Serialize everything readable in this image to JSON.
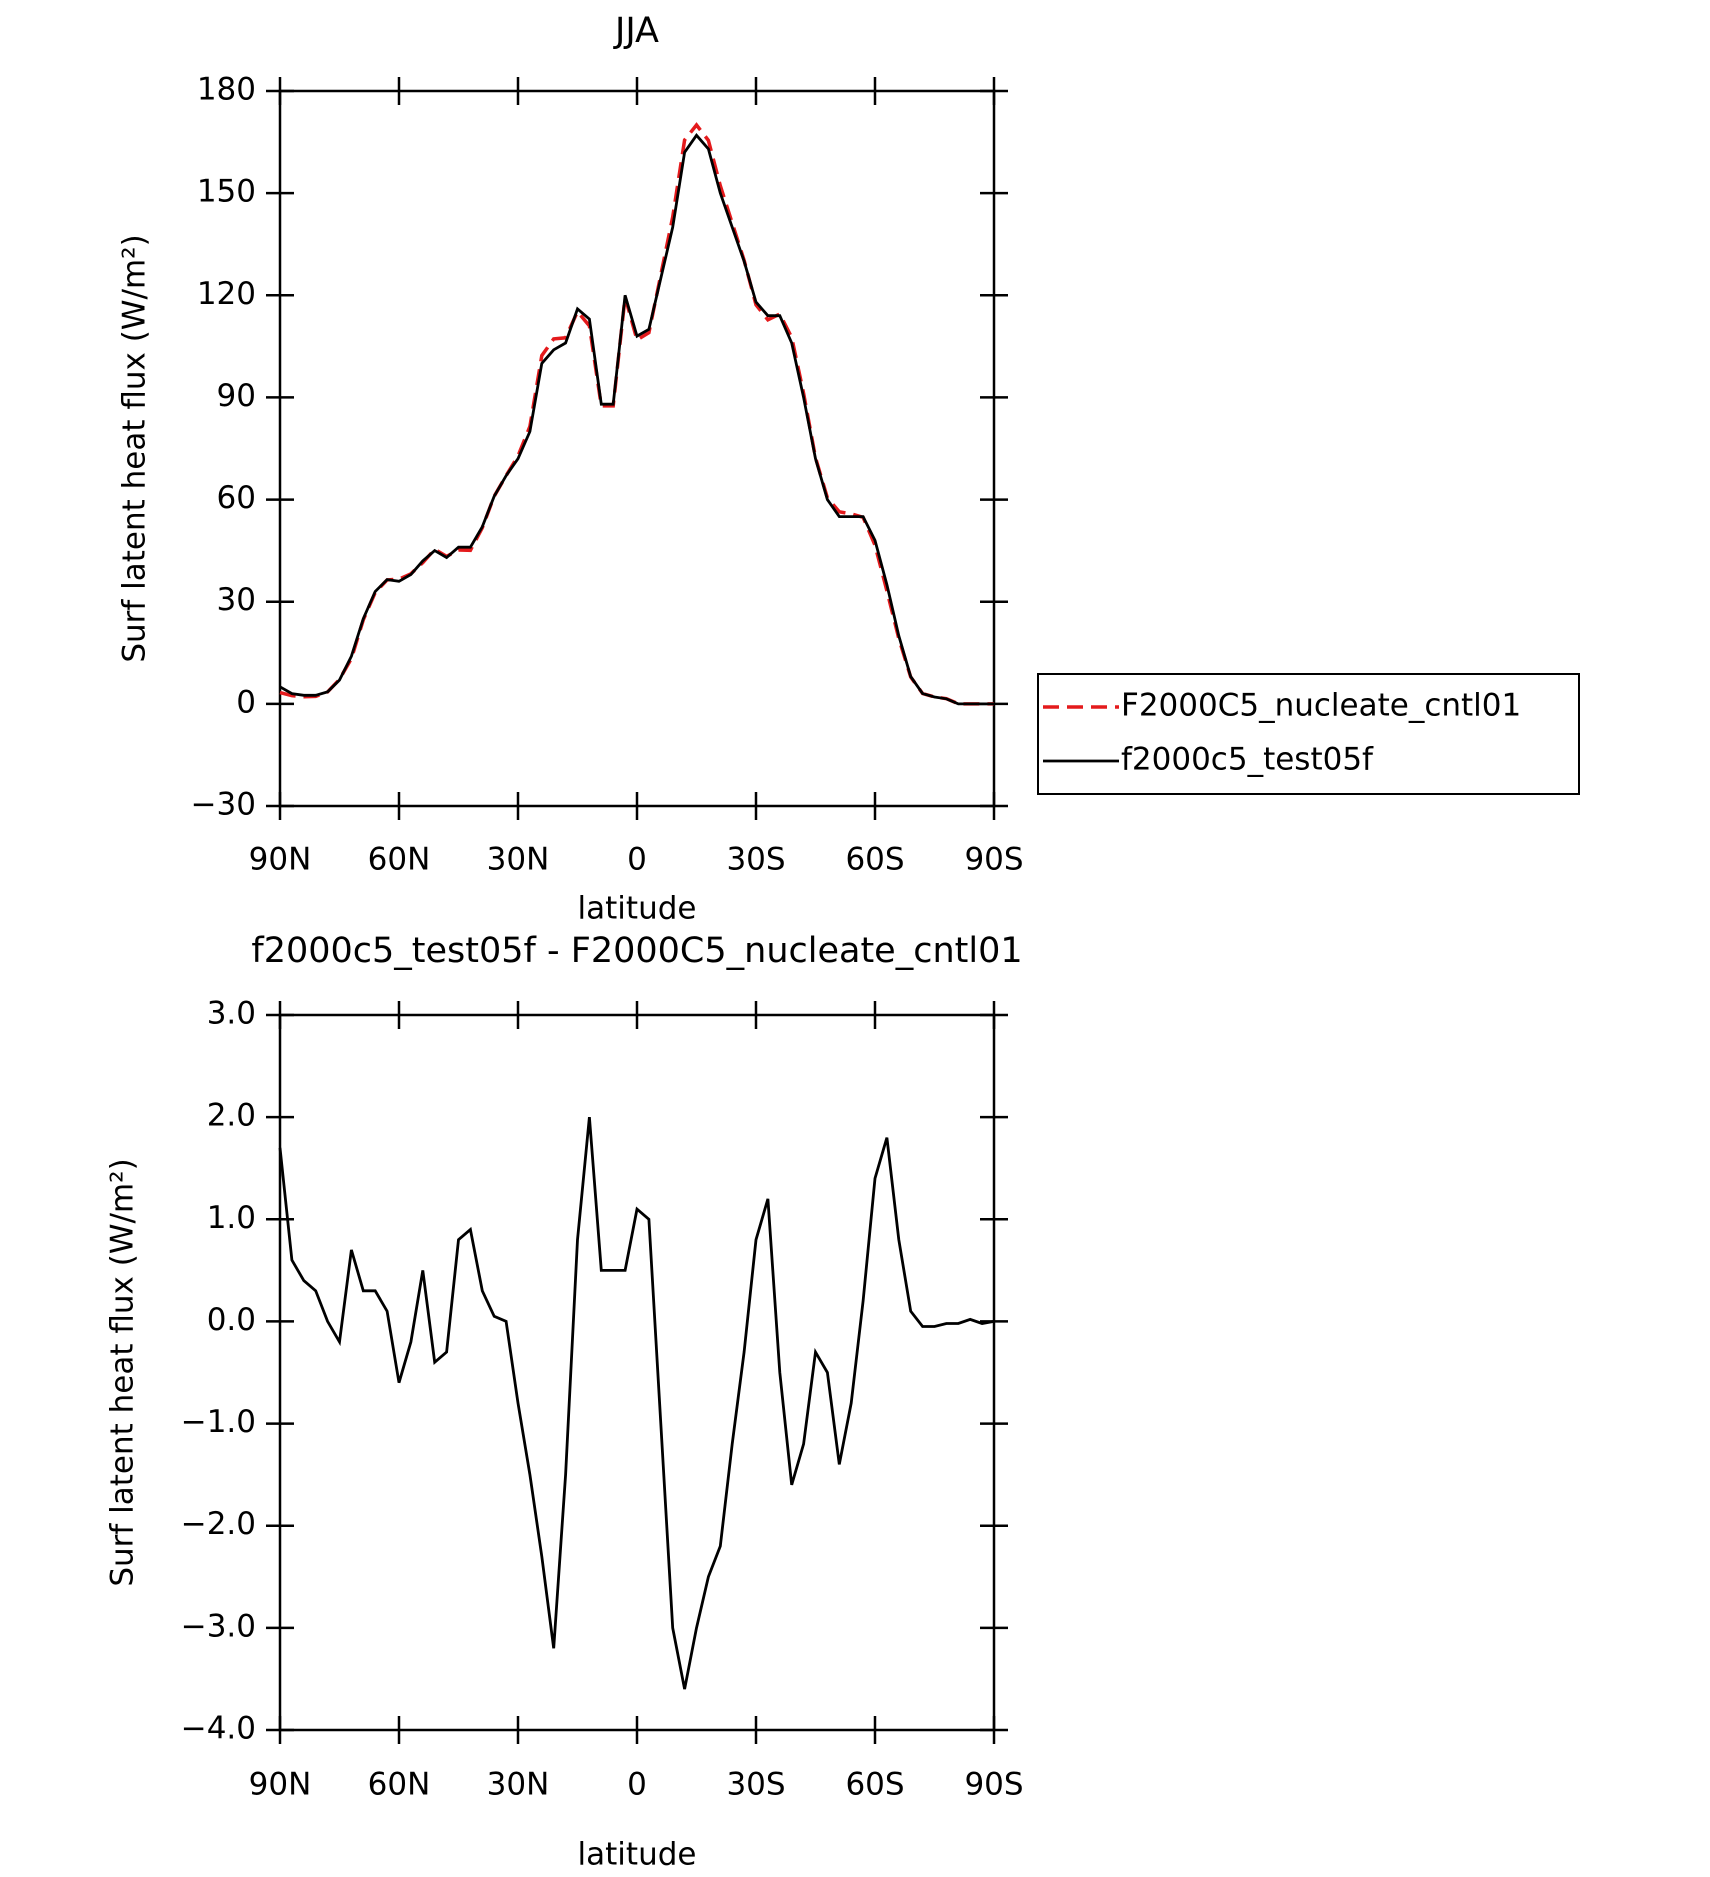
{
  "chart_data": [
    {
      "type": "line",
      "title": "JJA",
      "xlabel": "latitude",
      "ylabel": "Surf latent heat flux (W/m²)",
      "x": [
        90,
        87,
        84,
        81,
        78,
        75,
        72,
        69,
        66,
        63,
        60,
        57,
        54,
        51,
        48,
        45,
        42,
        39,
        36,
        33,
        30,
        27,
        24,
        21,
        18,
        15,
        12,
        9,
        6,
        3,
        0,
        -3,
        -6,
        -9,
        -12,
        -15,
        -18,
        -21,
        -24,
        -27,
        -30,
        -33,
        -36,
        -39,
        -42,
        -45,
        -48,
        -51,
        -54,
        -57,
        -60,
        -63,
        -66,
        -69,
        -72,
        -75,
        -78,
        -81,
        -84,
        -87,
        -90
      ],
      "series": [
        {
          "name": "F2000C5_nucleate_cntl01",
          "color": "#e41a1c",
          "dash": "dashed",
          "values": [
            3.3,
            2.4,
            2.1,
            2.2,
            3.5,
            7.2,
            13.3,
            24.7,
            32.7,
            36.4,
            36.6,
            38.2,
            41.5,
            45.4,
            43.3,
            45.2,
            45.1,
            51.7,
            61,
            67,
            72.8,
            81.5,
            102.3,
            107.2,
            107.5,
            115.2,
            111,
            87.5,
            87.5,
            119.5,
            106.9,
            109,
            126,
            143,
            165.6,
            170,
            165.5,
            152.2,
            141.2,
            130.3,
            117.2,
            112.8,
            114.5,
            107.6,
            91.2,
            72.3,
            60.5,
            56.4,
            55.8,
            54.8,
            46.6,
            33.2,
            19.2,
            7.9,
            3.05,
            2.05,
            1.52,
            0.02,
            -0.02,
            0.02,
            0
          ]
        },
        {
          "name": "f2000c5_test05f",
          "color": "#000000",
          "dash": "solid",
          "values": [
            5,
            3,
            2.5,
            2.5,
            3.5,
            7,
            14,
            25,
            33,
            36.5,
            36,
            38,
            42,
            45,
            43,
            46,
            46,
            52,
            61,
            67,
            72,
            80,
            100,
            104,
            106,
            116,
            113,
            88,
            88,
            120,
            108,
            110,
            125,
            140,
            162,
            167,
            163,
            150,
            140,
            130,
            118,
            114,
            114,
            106,
            90,
            72,
            60,
            55,
            55,
            55,
            48,
            35,
            20,
            8,
            3,
            2,
            1.5,
            0,
            0,
            0,
            0
          ]
        }
      ],
      "xlim": [
        90,
        -90
      ],
      "xticks": [
        {
          "value": 90,
          "label": "90N"
        },
        {
          "value": 60,
          "label": "60N"
        },
        {
          "value": 30,
          "label": "30N"
        },
        0,
        {
          "value": -30,
          "label": "30S"
        },
        {
          "value": -60,
          "label": "60S"
        },
        {
          "value": -90,
          "label": "90S"
        }
      ],
      "ylim": [
        -30,
        180
      ],
      "yticks": [
        {
          "value": -30,
          "label": "−30"
        },
        0,
        30,
        60,
        90,
        120,
        150,
        180
      ],
      "legend_position": "right"
    },
    {
      "type": "line",
      "title": "f2000c5_test05f - F2000C5_nucleate_cntl01",
      "xlabel": "latitude",
      "ylabel": "Surf latent heat flux (W/m²)",
      "x": [
        90,
        87,
        84,
        81,
        78,
        75,
        72,
        69,
        66,
        63,
        60,
        57,
        54,
        51,
        48,
        45,
        42,
        39,
        36,
        33,
        30,
        27,
        24,
        21,
        18,
        15,
        12,
        9,
        6,
        3,
        0,
        -3,
        -6,
        -9,
        -12,
        -15,
        -18,
        -21,
        -24,
        -27,
        -30,
        -33,
        -36,
        -39,
        -42,
        -45,
        -48,
        -51,
        -54,
        -57,
        -60,
        -63,
        -66,
        -69,
        -72,
        -75,
        -78,
        -81,
        -84,
        -87,
        -90
      ],
      "series": [
        {
          "color": "#000000",
          "dash": "solid",
          "values": [
            1.7,
            0.6,
            0.4,
            0.3,
            0,
            -0.2,
            0.7,
            0.3,
            0.3,
            0.1,
            -0.6,
            -0.2,
            0.5,
            -0.4,
            -0.3,
            0.8,
            0.9,
            0.3,
            0.05,
            0,
            -0.8,
            -1.5,
            -2.3,
            -3.2,
            -1.5,
            0.8,
            2,
            0.5,
            0.5,
            0.5,
            1.1,
            1,
            -1,
            -3,
            -3.6,
            -3,
            -2.5,
            -2.2,
            -1.2,
            -0.3,
            0.8,
            1.2,
            -0.5,
            -1.6,
            -1.2,
            -0.3,
            -0.5,
            -1.4,
            -0.8,
            0.2,
            1.4,
            1.8,
            0.8,
            0.1,
            -0.05,
            -0.05,
            -0.02,
            -0.02,
            0.02,
            -0.02,
            0
          ]
        }
      ],
      "xlim": [
        90,
        -90
      ],
      "xticks": [
        {
          "value": 90,
          "label": "90N"
        },
        {
          "value": 60,
          "label": "60N"
        },
        {
          "value": 30,
          "label": "30N"
        },
        0,
        {
          "value": -30,
          "label": "30S"
        },
        {
          "value": -60,
          "label": "60S"
        },
        {
          "value": -90,
          "label": "90S"
        }
      ],
      "ylim": [
        -4,
        3
      ],
      "yticks": [
        {
          "value": -4,
          "label": "−4.0"
        },
        {
          "value": -3,
          "label": "−3.0"
        },
        {
          "value": -2,
          "label": "−2.0"
        },
        {
          "value": -1,
          "label": "−1.0"
        },
        {
          "value": 0,
          "label": "0.0"
        },
        {
          "value": 1,
          "label": "1.0"
        },
        {
          "value": 2,
          "label": "2.0"
        },
        {
          "value": 3,
          "label": "3.0"
        }
      ]
    }
  ]
}
